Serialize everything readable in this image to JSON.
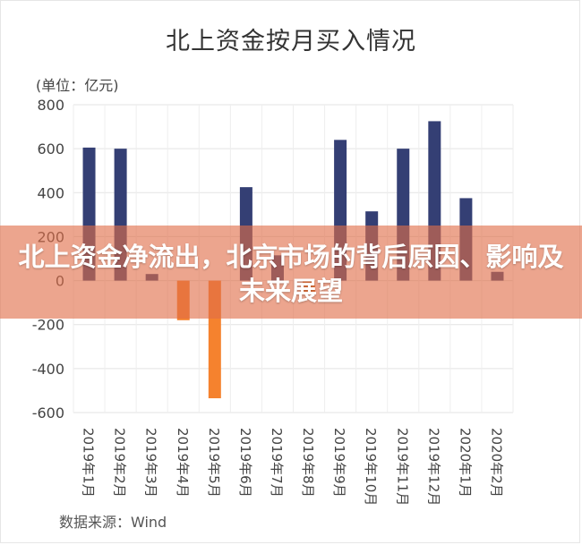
{
  "page": {
    "headline": "北上资金净流出，北京市场的背后原因、影响及未来展望"
  },
  "chart_data": {
    "type": "bar",
    "title": "北上资金按月买入情况",
    "unit_label": "(单位：亿元)",
    "source": "数据来源：Wind",
    "categories": [
      "2019年1月",
      "2019年2月",
      "2019年3月",
      "2019年4月",
      "2019年5月",
      "2019年6月",
      "2019年7月",
      "2019年8月",
      "2019年9月",
      "2019年10月",
      "2019年11月",
      "2019年12月",
      "2020年1月",
      "2020年2月"
    ],
    "values": [
      605,
      600,
      30,
      -180,
      -535,
      425,
      115,
      -60,
      640,
      315,
      600,
      725,
      375,
      40
    ],
    "ylim": [
      -600,
      800
    ],
    "yticks": [
      800,
      600,
      400,
      200,
      0,
      -200,
      -400,
      -600
    ],
    "grid": true,
    "legend": "none",
    "colors": {
      "positive": "#343f74",
      "negative": "#f5822e"
    }
  }
}
